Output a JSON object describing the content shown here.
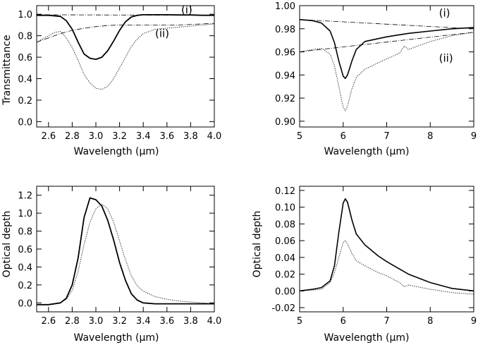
{
  "chart_data": [
    {
      "type": "line",
      "panel": "top-left",
      "xlabel": "Wavelength (μm)",
      "ylabel": "Transmittance",
      "xlim": [
        2.5,
        4.0
      ],
      "ylim": [
        -0.05,
        1.08
      ],
      "xticks": [
        2.6,
        2.8,
        3.0,
        3.2,
        3.4,
        3.6,
        3.8,
        4.0
      ],
      "xtick_labels": [
        "2.6",
        "2.8",
        "3.0",
        "3.2",
        "3.4",
        "3.6",
        "3.8",
        "4.0"
      ],
      "yticks": [
        0.0,
        0.2,
        0.4,
        0.6,
        0.8,
        1.0
      ],
      "ytick_labels": [
        "0.0",
        "0.2",
        "0.4",
        "0.6",
        "0.8",
        "1.0"
      ],
      "annotations": [
        {
          "text": "(i)",
          "x": 3.72,
          "y": 1.04
        },
        {
          "text": "(ii)",
          "x": 3.5,
          "y": 0.82
        }
      ],
      "series": [
        {
          "style": "solid",
          "weight": 1.8,
          "x": [
            2.5,
            2.6,
            2.7,
            2.75,
            2.8,
            2.85,
            2.9,
            2.95,
            3.0,
            3.05,
            3.1,
            3.15,
            3.2,
            3.25,
            3.3,
            3.35,
            3.4,
            3.5,
            3.6,
            3.7,
            3.8,
            3.9,
            4.0
          ],
          "y": [
            0.99,
            0.99,
            0.98,
            0.94,
            0.86,
            0.74,
            0.63,
            0.59,
            0.58,
            0.6,
            0.66,
            0.75,
            0.85,
            0.93,
            0.975,
            0.99,
            0.995,
            0.995,
            0.995,
            0.993,
            0.993,
            0.99,
            0.99
          ]
        },
        {
          "style": "dotted",
          "weight": 0.9,
          "x": [
            2.5,
            2.55,
            2.6,
            2.65,
            2.7,
            2.75,
            2.8,
            2.85,
            2.9,
            2.95,
            3.0,
            3.05,
            3.1,
            3.15,
            3.2,
            3.25,
            3.3,
            3.35,
            3.4,
            3.5,
            3.6,
            3.7,
            3.8,
            3.9,
            4.0
          ],
          "y": [
            0.74,
            0.77,
            0.8,
            0.83,
            0.84,
            0.78,
            0.69,
            0.57,
            0.44,
            0.36,
            0.31,
            0.3,
            0.33,
            0.4,
            0.5,
            0.6,
            0.7,
            0.77,
            0.82,
            0.86,
            0.87,
            0.88,
            0.89,
            0.9,
            0.91
          ]
        },
        {
          "style": "dashdot",
          "weight": 0.8,
          "x": [
            2.5,
            4.0
          ],
          "y": [
            0.995,
            0.99
          ]
        },
        {
          "style": "dashdot",
          "weight": 0.8,
          "x": [
            2.5,
            2.6,
            2.7,
            2.8,
            2.9,
            3.0,
            3.1,
            3.2,
            3.3,
            3.4,
            3.5,
            3.6,
            3.7,
            3.8,
            3.9,
            4.0
          ],
          "y": [
            0.74,
            0.78,
            0.82,
            0.85,
            0.87,
            0.885,
            0.895,
            0.9,
            0.9,
            0.9,
            0.9,
            0.9,
            0.9,
            0.905,
            0.91,
            0.915
          ]
        }
      ]
    },
    {
      "type": "line",
      "panel": "top-right",
      "xlabel": "Wavelength (μm)",
      "ylabel": "",
      "xlim": [
        5,
        9
      ],
      "ylim": [
        0.895,
        1.0
      ],
      "xticks": [
        5,
        6,
        7,
        8,
        9
      ],
      "xtick_labels": [
        "5",
        "6",
        "7",
        "8",
        "9"
      ],
      "yticks": [
        0.9,
        0.92,
        0.94,
        0.96,
        0.98,
        1.0
      ],
      "ytick_labels": [
        "0.90",
        "0.92",
        "0.94",
        "0.96",
        "0.98",
        "1.00"
      ],
      "annotations": [
        {
          "text": "(i)",
          "x": 8.2,
          "y": 0.9935
        },
        {
          "text": "(ii)",
          "x": 8.2,
          "y": 0.9545
        }
      ],
      "series": [
        {
          "style": "solid",
          "weight": 1.6,
          "x": [
            5,
            5.3,
            5.5,
            5.7,
            5.8,
            5.9,
            6.0,
            6.05,
            6.1,
            6.2,
            6.3,
            6.5,
            7.0,
            7.5,
            8.0,
            8.5,
            9.0
          ],
          "y": [
            0.988,
            0.987,
            0.985,
            0.978,
            0.968,
            0.952,
            0.939,
            0.937,
            0.94,
            0.952,
            0.962,
            0.969,
            0.973,
            0.976,
            0.978,
            0.98,
            0.981
          ]
        },
        {
          "style": "dotted",
          "weight": 0.9,
          "x": [
            5,
            5.3,
            5.5,
            5.7,
            5.8,
            5.9,
            6.0,
            6.05,
            6.1,
            6.2,
            6.3,
            6.5,
            7.0,
            7.3,
            7.4,
            7.5,
            8.0,
            8.5,
            9.0
          ],
          "y": [
            0.96,
            0.962,
            0.963,
            0.958,
            0.948,
            0.93,
            0.912,
            0.909,
            0.913,
            0.928,
            0.938,
            0.945,
            0.954,
            0.959,
            0.965,
            0.962,
            0.969,
            0.974,
            0.977
          ]
        },
        {
          "style": "dashdot",
          "weight": 0.8,
          "x": [
            5,
            9
          ],
          "y": [
            0.988,
            0.98
          ]
        },
        {
          "style": "dashdot",
          "weight": 0.8,
          "x": [
            5,
            9
          ],
          "y": [
            0.96,
            0.977
          ]
        }
      ]
    },
    {
      "type": "line",
      "panel": "bottom-left",
      "xlabel": "Wavelength (μm)",
      "ylabel": "Optical depth",
      "xlim": [
        2.5,
        4.0
      ],
      "ylim": [
        -0.1,
        1.3
      ],
      "xticks": [
        2.6,
        2.8,
        3.0,
        3.2,
        3.4,
        3.6,
        3.8,
        4.0
      ],
      "xtick_labels": [
        "2.6",
        "2.8",
        "3.0",
        "3.2",
        "3.4",
        "3.6",
        "3.8",
        "4.0"
      ],
      "yticks": [
        0.0,
        0.2,
        0.4,
        0.6,
        0.8,
        1.0,
        1.2
      ],
      "ytick_labels": [
        "0.0",
        "0.2",
        "0.4",
        "0.6",
        "0.8",
        "1.0",
        "1.2"
      ],
      "annotations": [],
      "series": [
        {
          "style": "solid",
          "weight": 1.8,
          "x": [
            2.5,
            2.6,
            2.7,
            2.75,
            2.8,
            2.85,
            2.9,
            2.95,
            3.0,
            3.05,
            3.1,
            3.15,
            3.2,
            3.25,
            3.3,
            3.35,
            3.4,
            3.5,
            3.6,
            3.8,
            4.0
          ],
          "y": [
            -0.02,
            -0.02,
            0.0,
            0.05,
            0.2,
            0.5,
            0.95,
            1.17,
            1.15,
            1.08,
            0.92,
            0.7,
            0.45,
            0.25,
            0.1,
            0.03,
            0.0,
            -0.01,
            -0.01,
            -0.01,
            -0.01
          ]
        },
        {
          "style": "dotted",
          "weight": 0.9,
          "x": [
            2.5,
            2.6,
            2.7,
            2.75,
            2.8,
            2.85,
            2.9,
            2.95,
            3.0,
            3.05,
            3.1,
            3.15,
            3.2,
            3.25,
            3.3,
            3.35,
            3.4,
            3.5,
            3.6,
            3.7,
            3.8,
            3.9,
            4.0
          ],
          "y": [
            -0.02,
            -0.02,
            0.0,
            0.04,
            0.14,
            0.35,
            0.65,
            0.9,
            1.05,
            1.1,
            1.05,
            0.9,
            0.69,
            0.48,
            0.3,
            0.19,
            0.13,
            0.07,
            0.04,
            0.02,
            0.01,
            0.0,
            -0.01
          ]
        }
      ]
    },
    {
      "type": "line",
      "panel": "bottom-right",
      "xlabel": "Wavelength (μm)",
      "ylabel": "Optical depth",
      "xlim": [
        5,
        9
      ],
      "ylim": [
        -0.025,
        0.125
      ],
      "xticks": [
        5,
        6,
        7,
        8,
        9
      ],
      "xtick_labels": [
        "5",
        "6",
        "7",
        "8",
        "9"
      ],
      "yticks": [
        -0.02,
        0.0,
        0.02,
        0.04,
        0.06,
        0.08,
        0.1,
        0.12
      ],
      "ytick_labels": [
        "-0.02",
        "0.00",
        "0.02",
        "0.04",
        "0.06",
        "0.08",
        "0.10",
        "0.12"
      ],
      "annotations": [],
      "series": [
        {
          "style": "solid",
          "weight": 1.6,
          "x": [
            5,
            5.3,
            5.5,
            5.7,
            5.8,
            5.9,
            6.0,
            6.05,
            6.1,
            6.2,
            6.3,
            6.5,
            6.8,
            7.0,
            7.5,
            8.0,
            8.5,
            9.0
          ],
          "y": [
            0.0,
            0.002,
            0.004,
            0.012,
            0.03,
            0.07,
            0.105,
            0.11,
            0.106,
            0.085,
            0.068,
            0.055,
            0.042,
            0.035,
            0.02,
            0.01,
            0.003,
            0.0
          ]
        },
        {
          "style": "dotted",
          "weight": 0.9,
          "x": [
            5,
            5.3,
            5.5,
            5.7,
            5.8,
            5.9,
            6.0,
            6.05,
            6.1,
            6.2,
            6.3,
            6.5,
            6.8,
            7.0,
            7.3,
            7.4,
            7.5,
            8.0,
            8.5,
            9.0
          ],
          "y": [
            0.0,
            0.001,
            0.002,
            0.01,
            0.022,
            0.04,
            0.058,
            0.06,
            0.056,
            0.045,
            0.036,
            0.03,
            0.022,
            0.018,
            0.01,
            0.005,
            0.007,
            0.002,
            -0.002,
            -0.004
          ]
        }
      ]
    }
  ]
}
